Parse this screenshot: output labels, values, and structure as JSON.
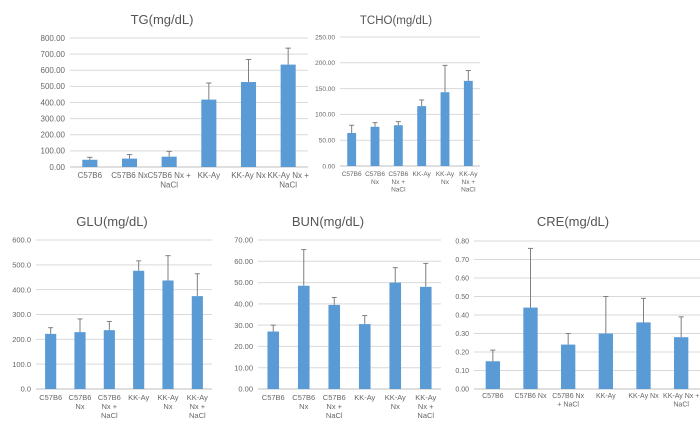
{
  "colors": {
    "bar": "#5b9bd5",
    "error_bar": "#7f7f7f",
    "grid": "#d9d9d9",
    "text": "#595959"
  },
  "chart_data": [
    {
      "id": "tg",
      "type": "bar",
      "title": "TG(mg/dL)",
      "categories": [
        [
          "C57B6"
        ],
        [
          "C57B6 Nx"
        ],
        [
          "C57B6 Nx +",
          "NaCl"
        ],
        [
          "KK-Ay"
        ],
        [
          "KK-Ay Nx"
        ],
        [
          "KK-Ay Nx +",
          "NaCl"
        ]
      ],
      "values": [
        45,
        52,
        64,
        418,
        527,
        635
      ],
      "errors": [
        15,
        25,
        33,
        103,
        140,
        102
      ],
      "ylim": [
        0,
        800
      ],
      "ytick_step": 100,
      "ytick_decimals": 2,
      "grid": true
    },
    {
      "id": "tcho",
      "type": "bar",
      "title": "TCHO(mg/dL)",
      "categories": [
        [
          "C57B6"
        ],
        [
          "C57B6",
          "Nx"
        ],
        [
          "C57B6",
          "Nx +",
          "NaCl"
        ],
        [
          "KK-Ay"
        ],
        [
          "KK-Ay",
          "Nx"
        ],
        [
          "KK-Ay",
          "Nx +",
          "NaCl"
        ]
      ],
      "values": [
        64,
        76,
        79,
        116,
        143,
        165
      ],
      "errors": [
        15,
        8,
        7,
        12,
        52,
        20
      ],
      "ylim": [
        0,
        250
      ],
      "ytick_step": 50,
      "ytick_decimals": 2,
      "grid": true
    },
    {
      "id": "glu",
      "type": "bar",
      "title": "GLU(mg/dL)",
      "categories": [
        [
          "C57B6"
        ],
        [
          "C57B6",
          "Nx"
        ],
        [
          "C57B6",
          "Nx +",
          "NaCl"
        ],
        [
          "KK-Ay"
        ],
        [
          "KK-Ay",
          "Nx"
        ],
        [
          "KK-Ay",
          "Nx +",
          "NaCl"
        ]
      ],
      "values": [
        222,
        229,
        237,
        476,
        437,
        374
      ],
      "errors": [
        25,
        53,
        35,
        40,
        100,
        90
      ],
      "ylim": [
        0,
        600
      ],
      "ytick_step": 100,
      "ytick_decimals": 1,
      "grid": true
    },
    {
      "id": "bun",
      "type": "bar",
      "title": "BUN(mg/dL)",
      "categories": [
        [
          "C57B6"
        ],
        [
          "C57B6",
          "Nx"
        ],
        [
          "C57B6",
          "Nx +",
          "NaCl"
        ],
        [
          "KK-Ay"
        ],
        [
          "KK-Ay",
          "Nx"
        ],
        [
          "KK-Ay",
          "Nx +",
          "NaCl"
        ]
      ],
      "values": [
        27,
        48.5,
        39.5,
        30.5,
        50,
        48
      ],
      "errors": [
        3,
        17,
        3.5,
        4,
        7,
        11
      ],
      "ylim": [
        0,
        70
      ],
      "ytick_step": 10,
      "ytick_decimals": 2,
      "grid": true
    },
    {
      "id": "cre",
      "type": "bar",
      "title": "CRE(mg/dL)",
      "categories": [
        [
          "C57B6"
        ],
        [
          "C57B6 Nx"
        ],
        [
          "C57B6 Nx",
          "+ NaCl"
        ],
        [
          "KK-Ay"
        ],
        [
          "KK-Ay Nx"
        ],
        [
          "KK-Ay Nx +",
          "NaCl"
        ]
      ],
      "values": [
        0.15,
        0.44,
        0.24,
        0.3,
        0.36,
        0.28
      ],
      "errors": [
        0.06,
        0.32,
        0.06,
        0.2,
        0.13,
        0.11
      ],
      "ylim": [
        0,
        0.8
      ],
      "ytick_step": 0.1,
      "ytick_decimals": 2,
      "grid": true
    }
  ]
}
